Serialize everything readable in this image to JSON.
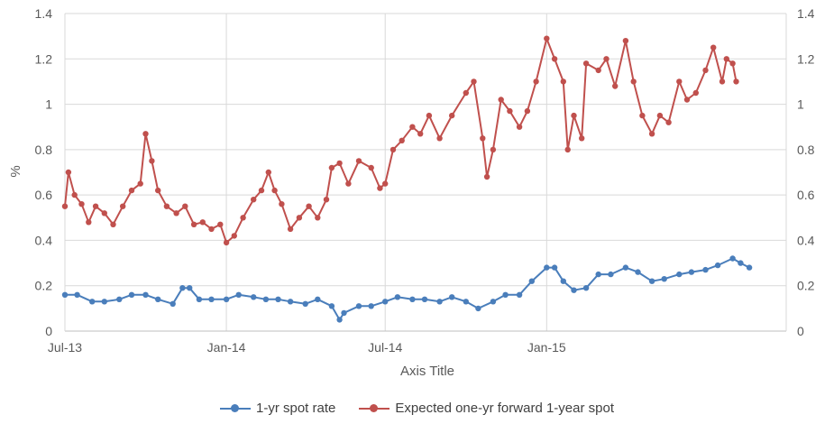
{
  "chart_data": {
    "type": "line",
    "title": "",
    "xlabel": "Axis Title",
    "ylabel": "%",
    "x_tick_labels": [
      "Jul-13",
      "Jan-14",
      "Jul-14",
      "Jan-15"
    ],
    "x_tick_dates": [
      "2013-07",
      "2014-01",
      "2014-07",
      "2015-01"
    ],
    "xlim": [
      "2013-07",
      "2015-10"
    ],
    "ylim": [
      0,
      1.4
    ],
    "y_ticks": [
      "0",
      "0.2",
      "0.4",
      "0.6",
      "0.8",
      "1",
      "1.2",
      "1.4"
    ],
    "grid": true,
    "secondary_y_axis": true,
    "legend_position": "bottom",
    "series": [
      {
        "name": "1-yr spot rate",
        "color": "#4a7ebb",
        "points": [
          [
            "2013-07-01",
            0.16
          ],
          [
            "2013-07-15",
            0.16
          ],
          [
            "2013-08-01",
            0.13
          ],
          [
            "2013-08-15",
            0.13
          ],
          [
            "2013-09-01",
            0.14
          ],
          [
            "2013-09-15",
            0.16
          ],
          [
            "2013-10-01",
            0.16
          ],
          [
            "2013-10-15",
            0.14
          ],
          [
            "2013-11-01",
            0.12
          ],
          [
            "2013-11-12",
            0.19
          ],
          [
            "2013-11-20",
            0.19
          ],
          [
            "2013-12-01",
            0.14
          ],
          [
            "2013-12-15",
            0.14
          ],
          [
            "2014-01-01",
            0.14
          ],
          [
            "2014-01-15",
            0.16
          ],
          [
            "2014-02-01",
            0.15
          ],
          [
            "2014-02-15",
            0.14
          ],
          [
            "2014-03-01",
            0.14
          ],
          [
            "2014-03-15",
            0.13
          ],
          [
            "2014-04-01",
            0.12
          ],
          [
            "2014-04-15",
            0.14
          ],
          [
            "2014-05-01",
            0.11
          ],
          [
            "2014-05-10",
            0.05
          ],
          [
            "2014-05-15",
            0.08
          ],
          [
            "2014-06-01",
            0.11
          ],
          [
            "2014-06-15",
            0.11
          ],
          [
            "2014-07-01",
            0.13
          ],
          [
            "2014-07-15",
            0.15
          ],
          [
            "2014-08-01",
            0.14
          ],
          [
            "2014-08-15",
            0.14
          ],
          [
            "2014-09-01",
            0.13
          ],
          [
            "2014-09-15",
            0.15
          ],
          [
            "2014-10-01",
            0.13
          ],
          [
            "2014-10-15",
            0.1
          ],
          [
            "2014-11-01",
            0.13
          ],
          [
            "2014-11-15",
            0.16
          ],
          [
            "2014-12-01",
            0.16
          ],
          [
            "2014-12-15",
            0.22
          ],
          [
            "2015-01-01",
            0.28
          ],
          [
            "2015-01-10",
            0.28
          ],
          [
            "2015-01-20",
            0.22
          ],
          [
            "2015-02-01",
            0.18
          ],
          [
            "2015-02-15",
            0.19
          ],
          [
            "2015-03-01",
            0.25
          ],
          [
            "2015-03-15",
            0.25
          ],
          [
            "2015-04-01",
            0.28
          ],
          [
            "2015-04-15",
            0.26
          ],
          [
            "2015-05-01",
            0.22
          ],
          [
            "2015-05-15",
            0.23
          ],
          [
            "2015-06-01",
            0.25
          ],
          [
            "2015-06-15",
            0.26
          ],
          [
            "2015-07-01",
            0.27
          ],
          [
            "2015-07-15",
            0.29
          ],
          [
            "2015-08-01",
            0.32
          ],
          [
            "2015-08-10",
            0.3
          ],
          [
            "2015-08-20",
            0.28
          ]
        ]
      },
      {
        "name": "Expected one-yr forward 1-year spot",
        "color": "#c0504d",
        "points": [
          [
            "2013-07-01",
            0.55
          ],
          [
            "2013-07-05",
            0.7
          ],
          [
            "2013-07-12",
            0.6
          ],
          [
            "2013-07-20",
            0.56
          ],
          [
            "2013-07-28",
            0.48
          ],
          [
            "2013-08-05",
            0.55
          ],
          [
            "2013-08-15",
            0.52
          ],
          [
            "2013-08-25",
            0.47
          ],
          [
            "2013-09-05",
            0.55
          ],
          [
            "2013-09-15",
            0.62
          ],
          [
            "2013-09-25",
            0.65
          ],
          [
            "2013-10-01",
            0.87
          ],
          [
            "2013-10-08",
            0.75
          ],
          [
            "2013-10-15",
            0.62
          ],
          [
            "2013-10-25",
            0.55
          ],
          [
            "2013-11-05",
            0.52
          ],
          [
            "2013-11-15",
            0.55
          ],
          [
            "2013-11-25",
            0.47
          ],
          [
            "2013-12-05",
            0.48
          ],
          [
            "2013-12-15",
            0.45
          ],
          [
            "2013-12-25",
            0.47
          ],
          [
            "2014-01-01",
            0.39
          ],
          [
            "2014-01-10",
            0.42
          ],
          [
            "2014-01-20",
            0.5
          ],
          [
            "2014-02-01",
            0.58
          ],
          [
            "2014-02-10",
            0.62
          ],
          [
            "2014-02-18",
            0.7
          ],
          [
            "2014-02-25",
            0.62
          ],
          [
            "2014-03-05",
            0.56
          ],
          [
            "2014-03-15",
            0.45
          ],
          [
            "2014-03-25",
            0.5
          ],
          [
            "2014-04-05",
            0.55
          ],
          [
            "2014-04-15",
            0.5
          ],
          [
            "2014-04-25",
            0.58
          ],
          [
            "2014-05-01",
            0.72
          ],
          [
            "2014-05-10",
            0.74
          ],
          [
            "2014-05-20",
            0.65
          ],
          [
            "2014-06-01",
            0.75
          ],
          [
            "2014-06-15",
            0.72
          ],
          [
            "2014-06-25",
            0.63
          ],
          [
            "2014-07-01",
            0.65
          ],
          [
            "2014-07-10",
            0.8
          ],
          [
            "2014-07-20",
            0.84
          ],
          [
            "2014-08-01",
            0.9
          ],
          [
            "2014-08-10",
            0.87
          ],
          [
            "2014-08-20",
            0.95
          ],
          [
            "2014-09-01",
            0.85
          ],
          [
            "2014-09-15",
            0.95
          ],
          [
            "2014-10-01",
            1.05
          ],
          [
            "2014-10-10",
            1.1
          ],
          [
            "2014-10-20",
            0.85
          ],
          [
            "2014-10-25",
            0.68
          ],
          [
            "2014-11-01",
            0.8
          ],
          [
            "2014-11-10",
            1.02
          ],
          [
            "2014-11-20",
            0.97
          ],
          [
            "2014-12-01",
            0.9
          ],
          [
            "2014-12-10",
            0.97
          ],
          [
            "2014-12-20",
            1.1
          ],
          [
            "2015-01-01",
            1.29
          ],
          [
            "2015-01-10",
            1.2
          ],
          [
            "2015-01-20",
            1.1
          ],
          [
            "2015-01-25",
            0.8
          ],
          [
            "2015-02-01",
            0.95
          ],
          [
            "2015-02-10",
            0.85
          ],
          [
            "2015-02-15",
            1.18
          ],
          [
            "2015-03-01",
            1.15
          ],
          [
            "2015-03-10",
            1.2
          ],
          [
            "2015-03-20",
            1.08
          ],
          [
            "2015-04-01",
            1.28
          ],
          [
            "2015-04-10",
            1.1
          ],
          [
            "2015-04-20",
            0.95
          ],
          [
            "2015-05-01",
            0.87
          ],
          [
            "2015-05-10",
            0.95
          ],
          [
            "2015-05-20",
            0.92
          ],
          [
            "2015-06-01",
            1.1
          ],
          [
            "2015-06-10",
            1.02
          ],
          [
            "2015-06-20",
            1.05
          ],
          [
            "2015-07-01",
            1.15
          ],
          [
            "2015-07-10",
            1.25
          ],
          [
            "2015-07-20",
            1.1
          ],
          [
            "2015-07-25",
            1.2
          ],
          [
            "2015-08-01",
            1.18
          ],
          [
            "2015-08-05",
            1.1
          ]
        ]
      }
    ]
  }
}
